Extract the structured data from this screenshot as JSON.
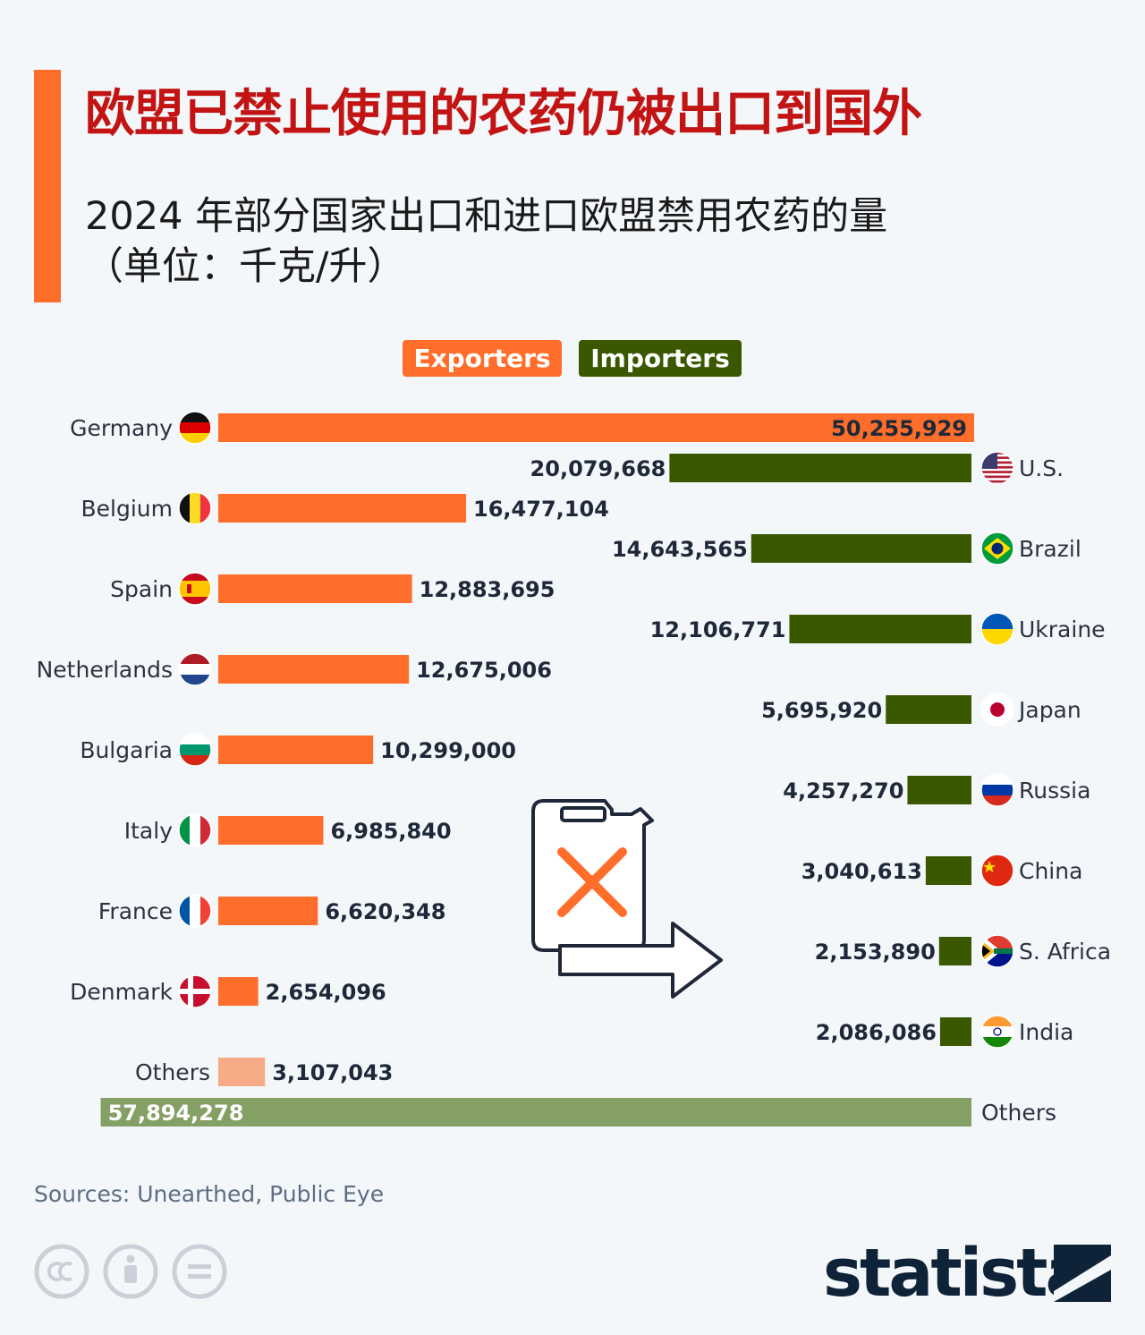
{
  "header": {
    "title": "欧盟已禁止使用的农药仍被出口到国外",
    "subtitle": "2024 年部分国家出口和进口欧盟禁用农药的量\n（单位：千克/升）"
  },
  "legend": {
    "exporters": "Exporters",
    "importers": "Importers"
  },
  "colors": {
    "exporters": "#ff6d2a",
    "exporters_others": "#f6ab86",
    "importers": "#3a5800",
    "importers_others": "#85a064",
    "title": "#c31414",
    "accent": "#ff6d2a"
  },
  "chart_data": {
    "type": "bar",
    "orientation": "horizontal",
    "series": [
      {
        "name": "Exporters",
        "categories": [
          "Germany",
          "Belgium",
          "Spain",
          "Netherlands",
          "Bulgaria",
          "Italy",
          "France",
          "Denmark",
          "Others"
        ],
        "values": [
          50255929,
          16477104,
          12883695,
          12675006,
          10299000,
          6985840,
          6620348,
          2654096,
          3107043
        ],
        "labels": [
          "50,255,929",
          "16,477,104",
          "12,883,695",
          "12,675,006",
          "10,299,000",
          "6,985,840",
          "6,620,348",
          "2,654,096",
          "3,107,043"
        ],
        "flags": [
          "flag-germany-icon",
          "flag-belgium-icon",
          "flag-spain-icon",
          "flag-netherlands-icon",
          "flag-bulgaria-icon",
          "flag-italy-icon",
          "flag-france-icon",
          "flag-denmark-icon",
          null
        ]
      },
      {
        "name": "Importers",
        "categories": [
          "U.S.",
          "Brazil",
          "Ukraine",
          "Japan",
          "Russia",
          "China",
          "S. Africa",
          "India",
          "Others"
        ],
        "values": [
          20079668,
          14643565,
          12106771,
          5695920,
          4257270,
          3040613,
          2153890,
          2086086,
          57894278
        ],
        "labels": [
          "20,079,668",
          "14,643,565",
          "12,106,771",
          "5,695,920",
          "4,257,270",
          "3,040,613",
          "2,153,890",
          "2,086,086",
          "57,894,278"
        ],
        "flags": [
          "flag-us-icon",
          "flag-brazil-icon",
          "flag-ukraine-icon",
          "flag-japan-icon",
          "flag-russia-icon",
          "flag-china-icon",
          "flag-south-africa-icon",
          "flag-india-icon",
          null
        ]
      }
    ],
    "title": "欧盟已禁止使用的农药仍被出口到国外",
    "subtitle": "2024 年部分国家出口和进口欧盟禁用农药的量（单位：千克/升）",
    "legend": [
      "Exporters",
      "Importers"
    ],
    "legend_position": "top-center",
    "grid": false
  },
  "footer": {
    "sources": "Sources: Unearthed, Public Eye",
    "brand": "statista",
    "license_icons": [
      "cc-icon",
      "attribution-icon",
      "no-derivatives-icon"
    ]
  },
  "illustration": {
    "icon": "banned-pesticide-canister-export-icon"
  }
}
